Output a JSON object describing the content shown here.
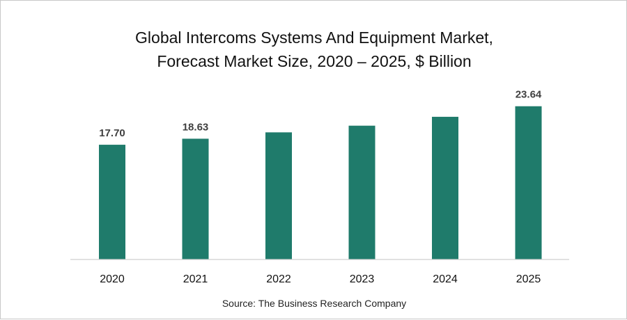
{
  "chart_data": {
    "type": "bar",
    "title_line1": "Global Intercoms Systems And Equipment Market,",
    "title_line2": "Forecast Market Size, 2020 – 2025, $ Billion",
    "categories": [
      "2020",
      "2021",
      "2022",
      "2023",
      "2024",
      "2025"
    ],
    "values": [
      17.7,
      18.63,
      19.61,
      20.64,
      22.01,
      23.64
    ],
    "data_labels": [
      "17.70",
      "18.63",
      "",
      "",
      "",
      "23.64"
    ],
    "ylim": [
      0,
      26.4
    ],
    "bar_color": "#1f7b6b",
    "grid": false,
    "legend": "none",
    "xlabel": "",
    "ylabel": ""
  },
  "source": "Source: The Business Research Company"
}
